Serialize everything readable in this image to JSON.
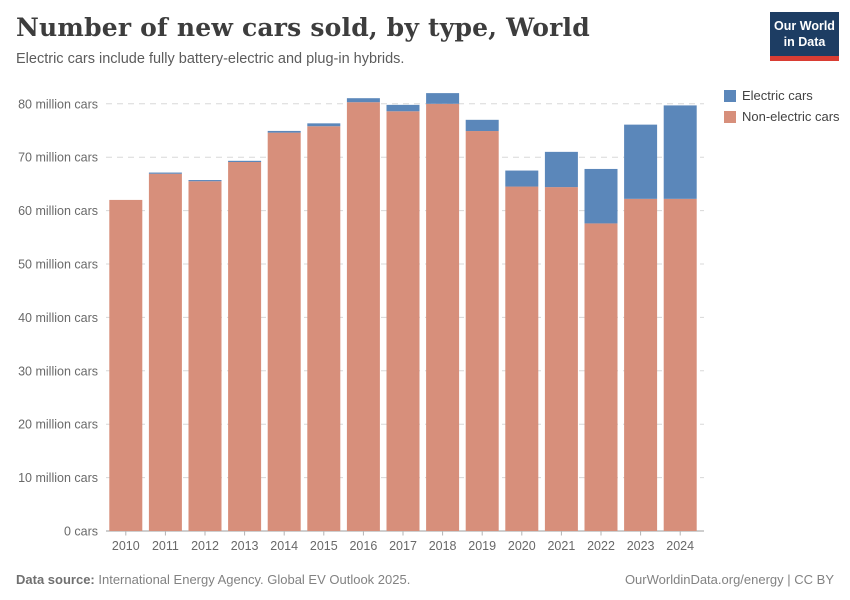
{
  "header": {
    "title": "Number of new cars sold, by type, World",
    "subtitle": "Electric cars include fully battery-electric and plug-in hybrids."
  },
  "logo": {
    "line1": "Our World",
    "line2": "in Data",
    "bg_color": "#1d3d63",
    "accent_color": "#d93d33"
  },
  "legend": {
    "items": [
      {
        "label": "Electric cars",
        "color": "#5b87ba"
      },
      {
        "label": "Non-electric cars",
        "color": "#d78f7b"
      }
    ]
  },
  "chart_data": {
    "type": "bar",
    "stacked": true,
    "title": "Number of new cars sold, by type, World",
    "categories": [
      "2010",
      "2011",
      "2012",
      "2013",
      "2014",
      "2015",
      "2016",
      "2017",
      "2018",
      "2019",
      "2020",
      "2021",
      "2022",
      "2023",
      "2024"
    ],
    "series": [
      {
        "name": "Electric cars",
        "color": "#5b87ba",
        "values": [
          0.01,
          0.05,
          0.11,
          0.2,
          0.32,
          0.54,
          0.75,
          1.2,
          2.0,
          2.1,
          3.0,
          6.6,
          10.2,
          13.9,
          17.5
        ]
      },
      {
        "name": "Non-electric cars",
        "color": "#d78f7b",
        "values": [
          62.0,
          66.9,
          65.5,
          69.1,
          74.6,
          75.8,
          80.3,
          78.6,
          80.0,
          74.9,
          64.5,
          64.4,
          57.6,
          62.2,
          62.2
        ]
      }
    ],
    "xlabel": "",
    "ylabel": "",
    "ylim": [
      0,
      80
    ],
    "ytick_step": 10,
    "ytick_label_format": "{v} million cars",
    "ytick_zero_label": "0 cars",
    "grid": "horizontal-dashed",
    "legend_position": "right-top"
  },
  "footer": {
    "source_label": "Data source:",
    "source_text": "International Energy Agency. Global EV Outlook 2025.",
    "link_text": "OurWorldinData.org/energy | CC BY"
  },
  "colors": {
    "electric": "#5b87ba",
    "non_electric": "#d78f7b",
    "gridline": "#d8d8d8",
    "zero_line": "#9e9e9e",
    "axis_text": "#696969",
    "title_text": "#3d3d3d"
  }
}
